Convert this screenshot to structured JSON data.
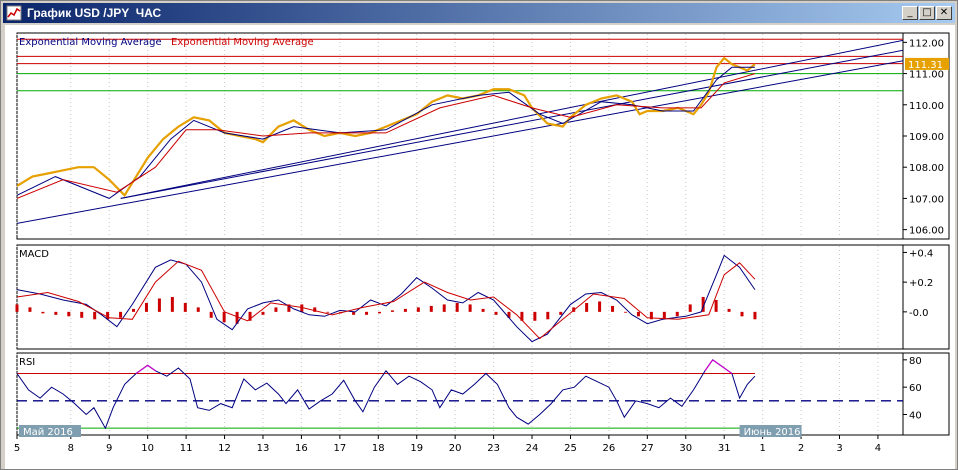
{
  "window": {
    "title": "График USD /JPY  ЧАС",
    "buttons": {
      "minimize": "_",
      "maximize": "□",
      "close": "✕"
    }
  },
  "colors": {
    "price": "#e6a000",
    "ema_fast": "#000080",
    "ema_slow": "#cc0000",
    "trend": "#000080",
    "level_red": "#cc0000",
    "level_green": "#00aa00",
    "macd_hist": "#cc0000",
    "rsi_line": "#000080",
    "rsi_over": "#cc00cc",
    "rsi_under": "#00aa00",
    "price_tag": "#e6a000"
  },
  "chart_data": [
    {
      "type": "line",
      "panel": "price",
      "legend": [
        {
          "name": "Exponential  Moving  Average",
          "color": "#000080"
        },
        {
          "name": "Exponential  Moving  Average",
          "color": "#cc0000"
        }
      ],
      "ylim": [
        105.7,
        112.3
      ],
      "y_ticks": [
        "112.00",
        "111.00",
        "110.00",
        "109.00",
        "108.00",
        "107.00",
        "106.00"
      ],
      "y_tick_values": [
        112,
        111,
        110,
        109,
        108,
        107,
        106
      ],
      "last_price_label": "111.31",
      "last_price": 111.31,
      "levels_red": [
        112.1,
        111.55,
        111.32
      ],
      "levels_green": [
        111.0,
        110.45
      ],
      "price_series": [
        [
          0,
          107.4
        ],
        [
          4,
          107.7
        ],
        [
          8,
          107.8
        ],
        [
          12,
          107.9
        ],
        [
          16,
          108.0
        ],
        [
          20,
          108.0
        ],
        [
          24,
          107.6
        ],
        [
          28,
          107.1
        ],
        [
          30,
          107.5
        ],
        [
          34,
          108.3
        ],
        [
          38,
          108.9
        ],
        [
          42,
          109.3
        ],
        [
          46,
          109.6
        ],
        [
          50,
          109.5
        ],
        [
          54,
          109.1
        ],
        [
          58,
          109.0
        ],
        [
          62,
          108.9
        ],
        [
          64,
          108.8
        ],
        [
          68,
          109.3
        ],
        [
          72,
          109.5
        ],
        [
          76,
          109.2
        ],
        [
          80,
          109.0
        ],
        [
          84,
          109.1
        ],
        [
          88,
          109.0
        ],
        [
          92,
          109.1
        ],
        [
          96,
          109.3
        ],
        [
          100,
          109.5
        ],
        [
          104,
          109.7
        ],
        [
          108,
          110.1
        ],
        [
          112,
          110.3
        ],
        [
          116,
          110.2
        ],
        [
          120,
          110.3
        ],
        [
          124,
          110.5
        ],
        [
          128,
          110.5
        ],
        [
          132,
          110.3
        ],
        [
          134,
          109.9
        ],
        [
          138,
          109.4
        ],
        [
          142,
          109.3
        ],
        [
          144,
          109.6
        ],
        [
          148,
          110.0
        ],
        [
          152,
          110.2
        ],
        [
          156,
          110.3
        ],
        [
          160,
          110.1
        ],
        [
          162,
          109.7
        ],
        [
          164,
          109.8
        ],
        [
          168,
          109.8
        ],
        [
          172,
          109.9
        ],
        [
          176,
          109.7
        ],
        [
          178,
          110.0
        ],
        [
          180,
          110.4
        ],
        [
          182,
          111.2
        ],
        [
          184,
          111.5
        ],
        [
          186,
          111.3
        ],
        [
          190,
          111.1
        ],
        [
          192,
          111.3
        ]
      ],
      "ema_fast_series": [
        [
          0,
          107.1
        ],
        [
          10,
          107.7
        ],
        [
          24,
          107.0
        ],
        [
          32,
          107.7
        ],
        [
          40,
          108.9
        ],
        [
          46,
          109.5
        ],
        [
          54,
          109.1
        ],
        [
          64,
          108.9
        ],
        [
          72,
          109.3
        ],
        [
          84,
          109.1
        ],
        [
          96,
          109.2
        ],
        [
          108,
          110.0
        ],
        [
          120,
          110.3
        ],
        [
          128,
          110.4
        ],
        [
          136,
          109.7
        ],
        [
          142,
          109.4
        ],
        [
          152,
          110.1
        ],
        [
          160,
          110.0
        ],
        [
          168,
          109.8
        ],
        [
          176,
          109.8
        ],
        [
          182,
          110.8
        ],
        [
          186,
          111.2
        ],
        [
          192,
          111.2
        ]
      ],
      "ema_slow_series": [
        [
          0,
          107.0
        ],
        [
          12,
          107.6
        ],
        [
          26,
          107.2
        ],
        [
          36,
          108.0
        ],
        [
          44,
          109.2
        ],
        [
          52,
          109.2
        ],
        [
          64,
          109.0
        ],
        [
          76,
          109.1
        ],
        [
          96,
          109.1
        ],
        [
          110,
          109.9
        ],
        [
          124,
          110.3
        ],
        [
          134,
          109.9
        ],
        [
          144,
          109.6
        ],
        [
          156,
          110.0
        ],
        [
          168,
          109.9
        ],
        [
          178,
          109.9
        ],
        [
          184,
          110.7
        ],
        [
          192,
          111.0
        ]
      ],
      "trendlines": [
        {
          "from": [
            0,
            106.2
          ],
          "to": [
            250,
            111.85
          ]
        },
        {
          "from": [
            27,
            107.0
          ],
          "to": [
            250,
            112.2
          ]
        },
        {
          "from": [
            27,
            107.0
          ],
          "to": [
            250,
            112.55
          ]
        }
      ]
    },
    {
      "type": "bar",
      "panel": "macd",
      "title": "MACD",
      "ylim": [
        -0.25,
        0.45
      ],
      "y_ticks": [
        "+0.4",
        "+0.2",
        "-0.0"
      ],
      "y_tick_values": [
        0.4,
        0.2,
        0.0
      ],
      "macd_series": [
        [
          0,
          0.15
        ],
        [
          6,
          0.12
        ],
        [
          12,
          0.08
        ],
        [
          18,
          0.05
        ],
        [
          22,
          -0.02
        ],
        [
          26,
          -0.1
        ],
        [
          30,
          0.05
        ],
        [
          36,
          0.3
        ],
        [
          40,
          0.35
        ],
        [
          44,
          0.32
        ],
        [
          48,
          0.2
        ],
        [
          52,
          -0.05
        ],
        [
          56,
          -0.12
        ],
        [
          60,
          0.02
        ],
        [
          64,
          0.06
        ],
        [
          68,
          0.08
        ],
        [
          72,
          0.02
        ],
        [
          76,
          -0.02
        ],
        [
          80,
          -0.03
        ],
        [
          84,
          0.01
        ],
        [
          88,
          0.0
        ],
        [
          92,
          0.08
        ],
        [
          96,
          0.04
        ],
        [
          100,
          0.12
        ],
        [
          104,
          0.23
        ],
        [
          108,
          0.16
        ],
        [
          112,
          0.08
        ],
        [
          116,
          0.06
        ],
        [
          120,
          0.13
        ],
        [
          124,
          0.08
        ],
        [
          130,
          -0.1
        ],
        [
          134,
          -0.2
        ],
        [
          138,
          -0.15
        ],
        [
          144,
          0.05
        ],
        [
          148,
          0.12
        ],
        [
          152,
          0.13
        ],
        [
          156,
          0.08
        ],
        [
          160,
          -0.02
        ],
        [
          164,
          -0.08
        ],
        [
          168,
          -0.05
        ],
        [
          174,
          -0.03
        ],
        [
          178,
          0.0
        ],
        [
          182,
          0.25
        ],
        [
          184,
          0.38
        ],
        [
          188,
          0.3
        ],
        [
          192,
          0.15
        ]
      ],
      "signal_series": [
        [
          0,
          0.1
        ],
        [
          8,
          0.13
        ],
        [
          16,
          0.07
        ],
        [
          24,
          -0.04
        ],
        [
          30,
          -0.05
        ],
        [
          36,
          0.2
        ],
        [
          42,
          0.34
        ],
        [
          48,
          0.28
        ],
        [
          54,
          0.0
        ],
        [
          60,
          -0.06
        ],
        [
          66,
          0.06
        ],
        [
          74,
          0.03
        ],
        [
          82,
          -0.02
        ],
        [
          90,
          0.03
        ],
        [
          98,
          0.07
        ],
        [
          106,
          0.2
        ],
        [
          112,
          0.13
        ],
        [
          118,
          0.08
        ],
        [
          124,
          0.1
        ],
        [
          130,
          -0.02
        ],
        [
          136,
          -0.18
        ],
        [
          142,
          -0.05
        ],
        [
          150,
          0.12
        ],
        [
          158,
          0.09
        ],
        [
          164,
          -0.04
        ],
        [
          172,
          -0.05
        ],
        [
          180,
          -0.02
        ],
        [
          184,
          0.25
        ],
        [
          188,
          0.33
        ],
        [
          192,
          0.22
        ]
      ],
      "histogram": [
        0.05,
        0.03,
        -0.01,
        -0.02,
        -0.03,
        -0.04,
        -0.05,
        -0.05,
        -0.04,
        0.02,
        0.06,
        0.09,
        0.1,
        0.06,
        0.03,
        -0.04,
        -0.07,
        -0.08,
        -0.06,
        -0.02,
        0.03,
        0.05,
        0.05,
        0.03,
        0.0,
        -0.01,
        -0.02,
        -0.02,
        -0.01,
        0.01,
        0.02,
        0.03,
        0.04,
        0.05,
        0.06,
        0.05,
        0.02,
        -0.02,
        -0.04,
        -0.06,
        -0.06,
        -0.05,
        -0.02,
        0.03,
        0.06,
        0.07,
        0.04,
        0.0,
        -0.03,
        -0.05,
        -0.05,
        -0.03,
        0.05,
        0.1,
        0.08,
        0.02,
        -0.03,
        -0.05
      ]
    },
    {
      "type": "line",
      "panel": "rsi",
      "title": "RSI",
      "ylim": [
        25,
        85
      ],
      "y_ticks": [
        "80",
        "60",
        "40"
      ],
      "y_tick_values": [
        80,
        60,
        40
      ],
      "over_level": 70,
      "mid_level": 50,
      "under_level": 30,
      "rsi_series": [
        [
          0,
          70
        ],
        [
          3,
          58
        ],
        [
          6,
          52
        ],
        [
          9,
          60
        ],
        [
          12,
          55
        ],
        [
          15,
          48
        ],
        [
          18,
          40
        ],
        [
          20,
          45
        ],
        [
          23,
          30
        ],
        [
          25,
          45
        ],
        [
          28,
          62
        ],
        [
          31,
          70
        ],
        [
          34,
          76
        ],
        [
          36,
          72
        ],
        [
          39,
          68
        ],
        [
          42,
          74
        ],
        [
          45,
          66
        ],
        [
          47,
          45
        ],
        [
          50,
          43
        ],
        [
          53,
          48
        ],
        [
          56,
          45
        ],
        [
          59,
          66
        ],
        [
          62,
          58
        ],
        [
          65,
          63
        ],
        [
          68,
          55
        ],
        [
          70,
          48
        ],
        [
          73,
          58
        ],
        [
          76,
          44
        ],
        [
          79,
          50
        ],
        [
          82,
          55
        ],
        [
          85,
          65
        ],
        [
          88,
          50
        ],
        [
          90,
          42
        ],
        [
          93,
          60
        ],
        [
          96,
          72
        ],
        [
          99,
          62
        ],
        [
          102,
          68
        ],
        [
          105,
          64
        ],
        [
          108,
          58
        ],
        [
          110,
          45
        ],
        [
          113,
          58
        ],
        [
          116,
          55
        ],
        [
          119,
          62
        ],
        [
          122,
          70
        ],
        [
          125,
          62
        ],
        [
          128,
          45
        ],
        [
          130,
          38
        ],
        [
          133,
          33
        ],
        [
          136,
          40
        ],
        [
          139,
          48
        ],
        [
          142,
          58
        ],
        [
          145,
          60
        ],
        [
          148,
          68
        ],
        [
          151,
          64
        ],
        [
          154,
          60
        ],
        [
          156,
          50
        ],
        [
          158,
          38
        ],
        [
          161,
          50
        ],
        [
          164,
          48
        ],
        [
          167,
          45
        ],
        [
          170,
          52
        ],
        [
          173,
          46
        ],
        [
          176,
          58
        ],
        [
          179,
          72
        ],
        [
          181,
          80
        ],
        [
          183,
          76
        ],
        [
          186,
          70
        ],
        [
          188,
          52
        ],
        [
          190,
          62
        ],
        [
          192,
          68
        ]
      ],
      "time_axis": {
        "month_labels": [
          "Май 2016",
          "Июнь 2016"
        ],
        "ticks": [
          "5",
          "8",
          "9",
          "10",
          "11",
          "12",
          "13",
          "16",
          "17",
          "18",
          "19",
          "20",
          "23",
          "24",
          "25",
          "26",
          "27",
          "30",
          "31",
          "1",
          "2",
          "3",
          "4"
        ],
        "tick_positions": [
          0,
          14,
          24,
          34,
          44,
          54,
          64,
          74,
          84,
          94,
          104,
          114,
          124,
          134,
          144,
          154,
          164,
          174,
          184,
          194,
          204,
          214,
          224
        ]
      }
    }
  ]
}
